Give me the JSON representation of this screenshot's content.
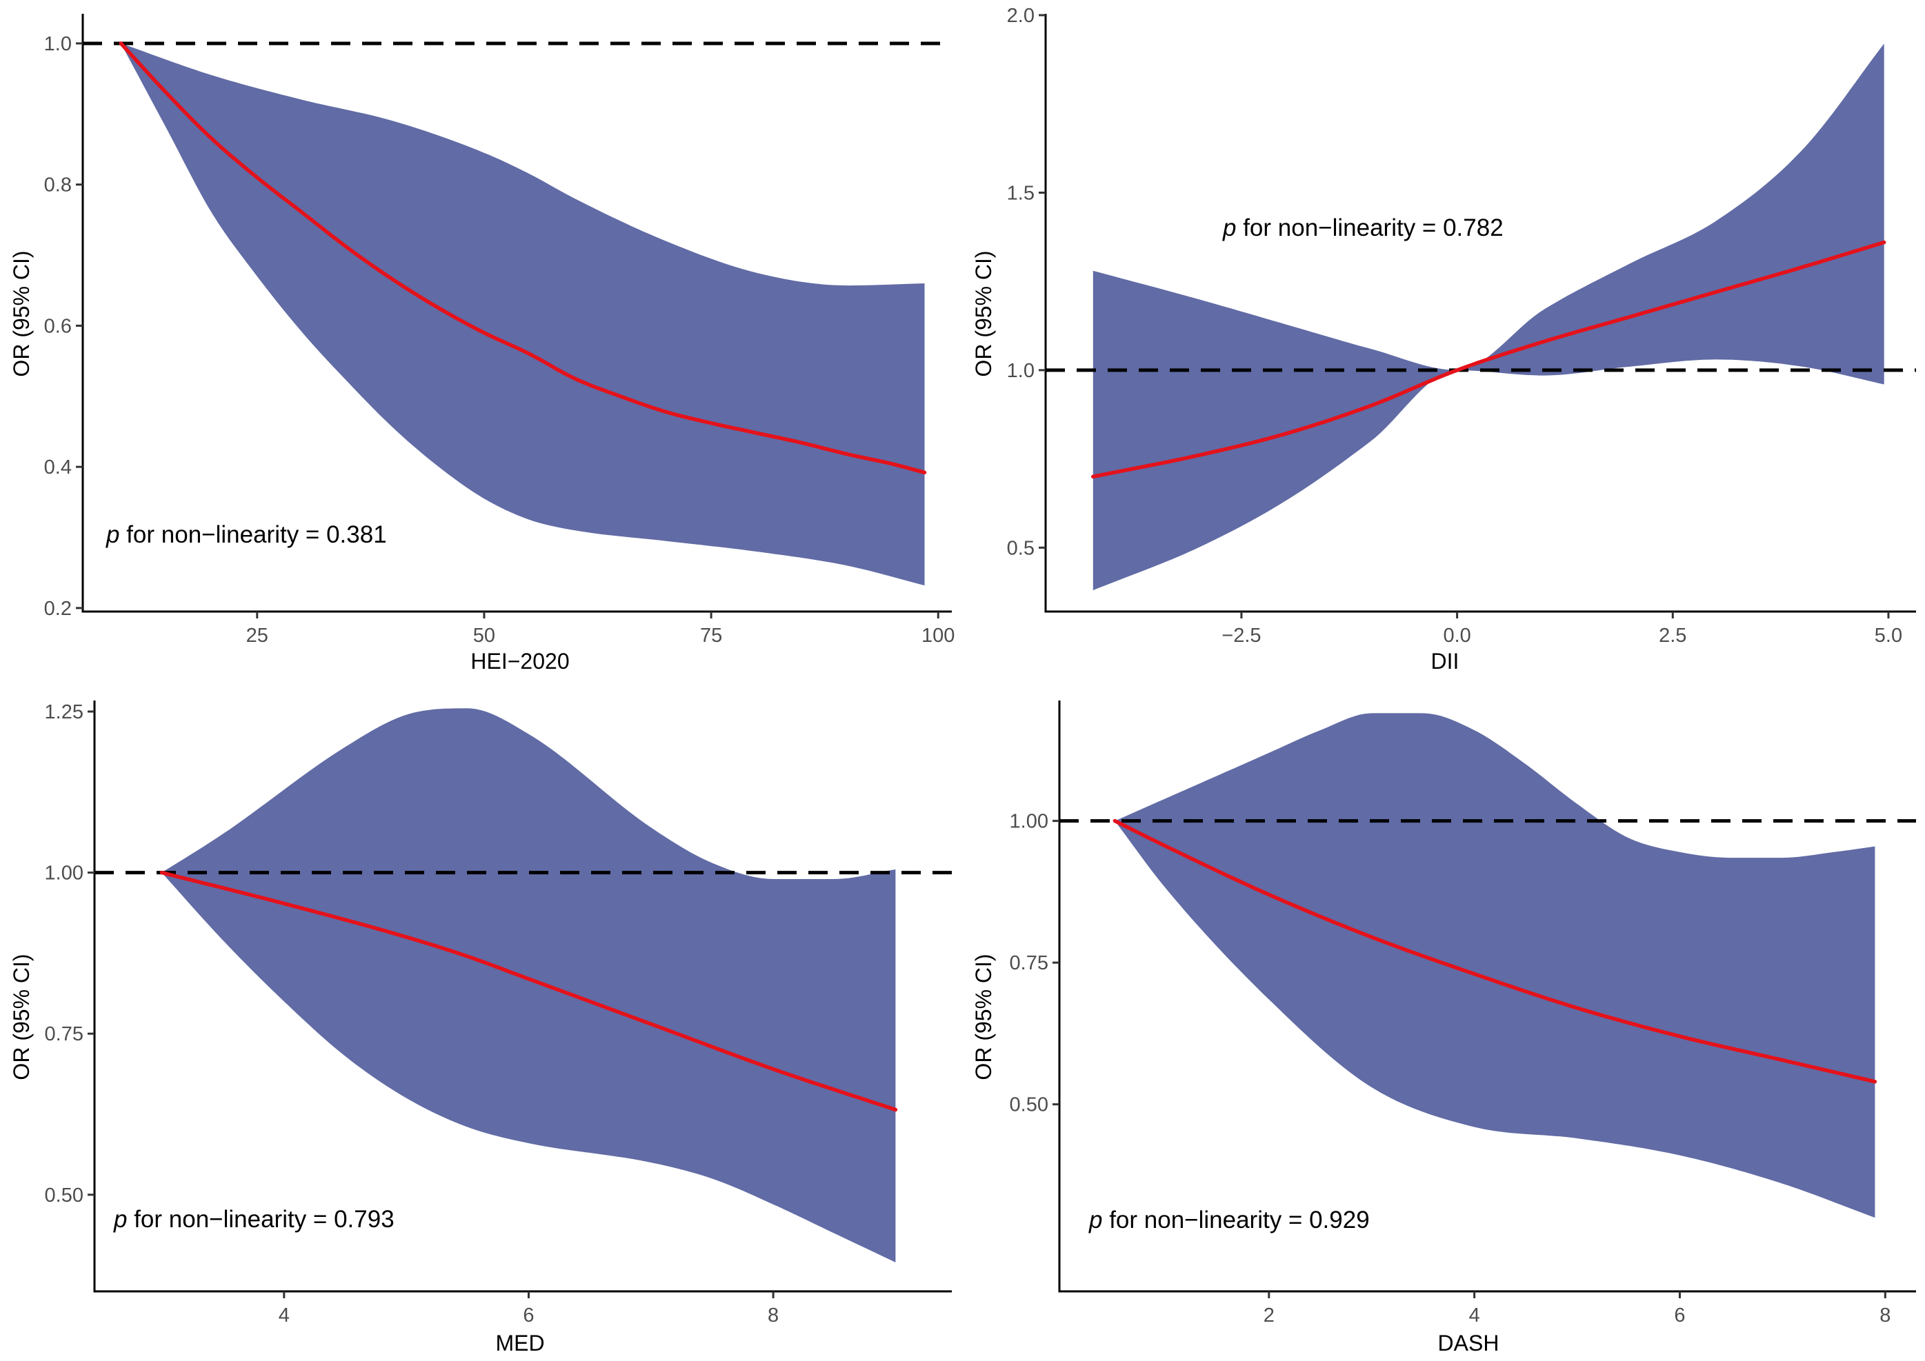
{
  "colors": {
    "band": "#616ba5",
    "line": "#e4121b",
    "reference": "#000000",
    "axis": "#000000"
  },
  "chart_data": [
    {
      "type": "line",
      "xlabel": "HEI−2020",
      "ylabel": "OR (95% CI)",
      "xlim": [
        5.8,
        101.5
      ],
      "ylim": [
        0.195,
        1.04
      ],
      "xticks": [
        25,
        50,
        75,
        100
      ],
      "xtick_labels": [
        "25",
        "50",
        "75",
        "100"
      ],
      "yticks": [
        0.2,
        0.4,
        0.6,
        0.8,
        1.0
      ],
      "ytick_labels": [
        "0.2",
        "0.4",
        "0.6",
        "0.8",
        "1.0"
      ],
      "reference_y": 1.0,
      "annotation": {
        "p": "p",
        "text": " for non−linearity = 0.381"
      },
      "series": [
        {
          "name": "OR",
          "x": [
            10,
            15,
            20,
            25,
            30,
            35,
            40,
            45,
            50,
            55,
            60,
            65,
            70,
            75,
            80,
            85,
            90,
            95,
            98.5
          ],
          "values": [
            1.0,
            0.93,
            0.865,
            0.81,
            0.76,
            0.71,
            0.665,
            0.625,
            0.59,
            0.56,
            0.525,
            0.5,
            0.478,
            0.462,
            0.448,
            0.434,
            0.418,
            0.404,
            0.392
          ]
        },
        {
          "name": "upper",
          "x": [
            10,
            20,
            30,
            40,
            50,
            55,
            60,
            70,
            80,
            90,
            98.5
          ],
          "values": [
            1.0,
            0.955,
            0.92,
            0.89,
            0.845,
            0.815,
            0.78,
            0.72,
            0.675,
            0.657,
            0.66
          ]
        },
        {
          "name": "lower",
          "x": [
            10,
            15,
            20,
            25,
            30,
            35,
            40,
            45,
            50,
            55,
            60,
            70,
            80,
            90,
            98.5
          ],
          "values": [
            1.0,
            0.88,
            0.76,
            0.67,
            0.59,
            0.52,
            0.455,
            0.4,
            0.355,
            0.325,
            0.31,
            0.295,
            0.28,
            0.26,
            0.232
          ]
        }
      ]
    },
    {
      "type": "line",
      "xlabel": "DII",
      "ylabel": "OR (95% CI)",
      "xlim": [
        -4.77,
        5.32
      ],
      "ylim": [
        0.32,
        2.0
      ],
      "xticks": [
        -2.5,
        0.0,
        2.5,
        5.0
      ],
      "xtick_labels": [
        "−2.5",
        "0.0",
        "2.5",
        "5.0"
      ],
      "yticks": [
        0.5,
        1.0,
        1.5,
        2.0
      ],
      "ytick_labels": [
        "0.5",
        "1.0",
        "1.5",
        "2.0"
      ],
      "reference_y": 1.0,
      "annotation": {
        "p": "p",
        "text": " for non−linearity = 0.782"
      },
      "series": [
        {
          "name": "OR",
          "x": [
            -4.22,
            -3,
            -2,
            -1,
            0,
            1,
            2,
            3,
            4,
            4.95
          ],
          "values": [
            0.7,
            0.76,
            0.82,
            0.9,
            1.0,
            1.08,
            1.15,
            1.22,
            1.29,
            1.36
          ]
        },
        {
          "name": "upper",
          "x": [
            -4.22,
            -3,
            -2,
            -1,
            0,
            1,
            2,
            3,
            4,
            4.95
          ],
          "values": [
            1.28,
            1.2,
            1.13,
            1.06,
            1.0,
            1.17,
            1.3,
            1.42,
            1.62,
            1.92
          ]
        },
        {
          "name": "lower",
          "x": [
            -4.22,
            -3,
            -2,
            -1,
            0,
            1,
            2,
            3,
            4,
            4.95
          ],
          "values": [
            0.38,
            0.5,
            0.63,
            0.8,
            1.0,
            0.985,
            1.01,
            1.03,
            1.01,
            0.96
          ]
        }
      ]
    },
    {
      "type": "line",
      "xlabel": "MED",
      "ylabel": "OR (95% CI)",
      "xlim": [
        2.45,
        9.46
      ],
      "ylim": [
        0.35,
        1.265
      ],
      "xticks": [
        4,
        6,
        8
      ],
      "xtick_labels": [
        "4",
        "6",
        "8"
      ],
      "yticks": [
        0.5,
        0.75,
        1.0,
        1.25
      ],
      "ytick_labels": [
        "0.50",
        "0.75",
        "1.00",
        "1.25"
      ],
      "reference_y": 1.0,
      "annotation": {
        "p": "p",
        "text": " for non−linearity = 0.793"
      },
      "series": [
        {
          "name": "OR",
          "x": [
            3,
            4,
            5,
            5.5,
            6,
            7,
            8,
            9
          ],
          "values": [
            1.0,
            0.952,
            0.9,
            0.87,
            0.835,
            0.765,
            0.695,
            0.632
          ]
        },
        {
          "name": "upper",
          "x": [
            3,
            3.5,
            4.5,
            5,
            5.5,
            6,
            7,
            7.5,
            8,
            8.5,
            9
          ],
          "values": [
            1.0,
            1.06,
            1.195,
            1.245,
            1.255,
            1.215,
            1.07,
            1.015,
            0.99,
            0.99,
            1.005
          ]
        },
        {
          "name": "lower",
          "x": [
            3,
            3.5,
            4,
            4.5,
            5,
            5.5,
            6,
            7,
            7.5,
            8,
            8.5,
            9
          ],
          "values": [
            1.0,
            0.895,
            0.8,
            0.715,
            0.65,
            0.605,
            0.58,
            0.55,
            0.525,
            0.485,
            0.44,
            0.395
          ]
        }
      ]
    },
    {
      "type": "line",
      "xlabel": "DASH",
      "ylabel": "OR (95% CI)",
      "xlim": [
        -0.04,
        8.3
      ],
      "ylim": [
        0.17,
        1.21
      ],
      "xticks": [
        2,
        4,
        6,
        8
      ],
      "xtick_labels": [
        "2",
        "4",
        "6",
        "8"
      ],
      "yticks": [
        0.5,
        0.75,
        1.0
      ],
      "ytick_labels": [
        "0.50",
        "0.75",
        "1.00"
      ],
      "reference_y": 1.0,
      "annotation": {
        "p": "p",
        "text": " for non−linearity = 0.929"
      },
      "series": [
        {
          "name": "OR",
          "x": [
            0.5,
            1,
            2,
            3,
            4,
            5,
            6,
            7,
            7.9
          ],
          "values": [
            1.0,
            0.955,
            0.87,
            0.795,
            0.73,
            0.67,
            0.62,
            0.578,
            0.54
          ]
        },
        {
          "name": "upper",
          "x": [
            0.5,
            1,
            2,
            2.5,
            3,
            3.5,
            4,
            4.5,
            5,
            5.5,
            6,
            6.5,
            7,
            7.5,
            7.9
          ],
          "values": [
            1.0,
            1.04,
            1.12,
            1.16,
            1.19,
            1.19,
            1.16,
            1.1,
            1.03,
            0.97,
            0.945,
            0.935,
            0.935,
            0.945,
            0.955
          ]
        },
        {
          "name": "lower",
          "x": [
            0.5,
            1,
            2,
            3,
            4,
            5,
            6,
            7,
            7.9
          ],
          "values": [
            1.0,
            0.88,
            0.685,
            0.53,
            0.46,
            0.44,
            0.41,
            0.36,
            0.3
          ]
        }
      ]
    }
  ]
}
